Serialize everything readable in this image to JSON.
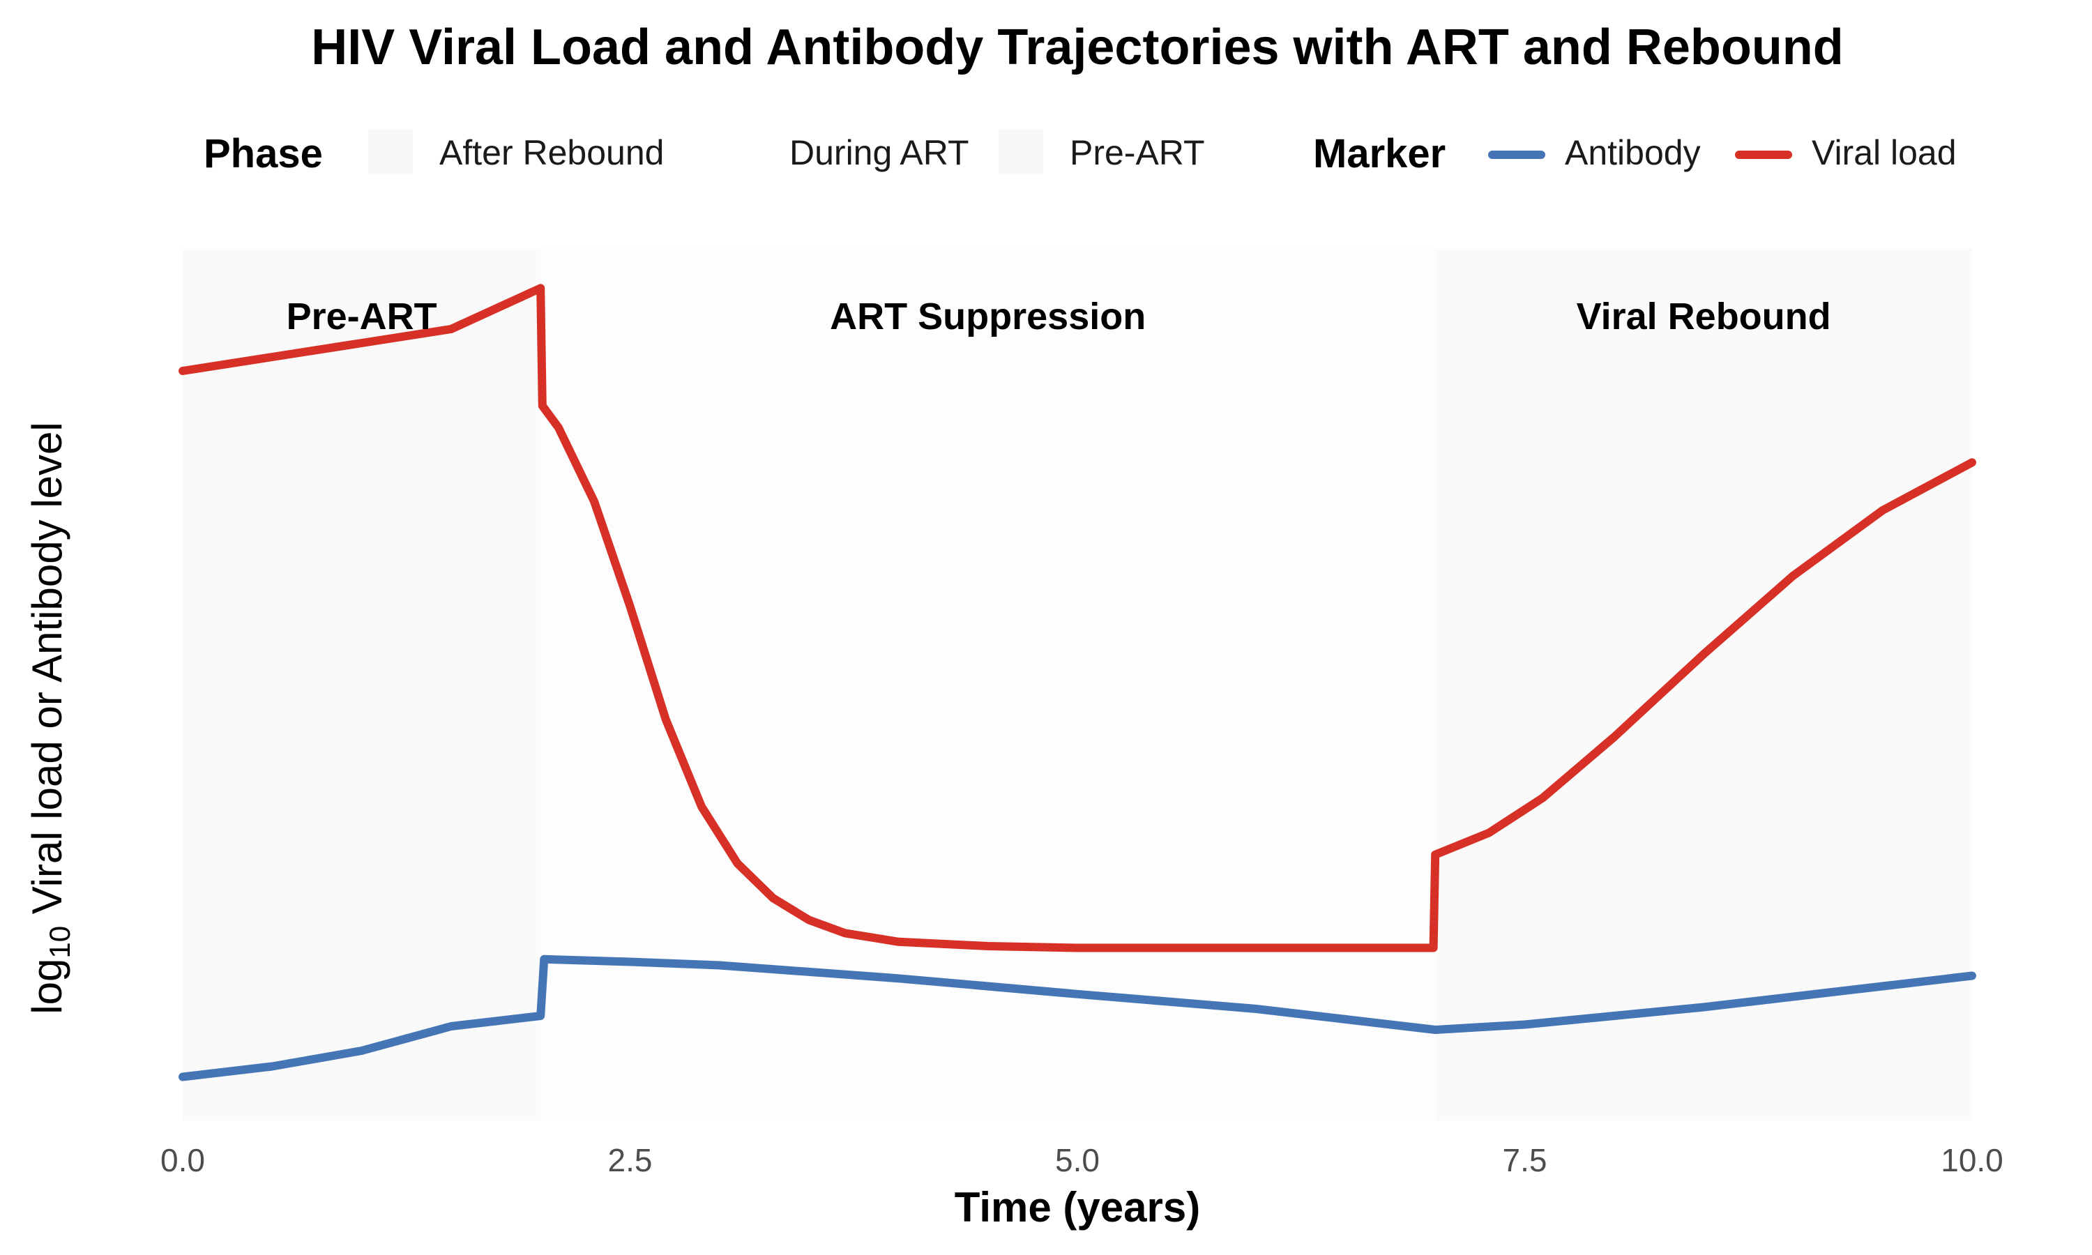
{
  "chart_data": {
    "type": "line",
    "title": "HIV Viral Load and Antibody Trajectories with ART and Rebound",
    "xlabel": "Time (years)",
    "ylabel_prefix": "log",
    "ylabel_sub": "10",
    "ylabel_rest": " Viral load or Antibody level",
    "xlim": [
      0,
      10
    ],
    "ylim": [
      0,
      1
    ],
    "x_ticks": [
      0,
      2.5,
      5,
      7.5,
      10
    ],
    "x_tick_labels": [
      "0.0",
      "2.5",
      "5.0",
      "7.5",
      "10.0"
    ],
    "grid": false,
    "legend": {
      "placement": "top",
      "phase_title": "Phase",
      "phase_entries": [
        {
          "label": "After Rebound",
          "color": "#f7f7f7"
        },
        {
          "label": "During ART",
          "color": "#ffffff"
        },
        {
          "label": "Pre-ART",
          "color": "#f7f7f7"
        }
      ],
      "marker_title": "Marker",
      "marker_entries": [
        {
          "label": "Antibody",
          "color": "#4575b4"
        },
        {
          "label": "Viral load",
          "color": "#d73027"
        }
      ]
    },
    "phases": [
      {
        "label": "Pre-ART",
        "x0": 0,
        "x1": 2,
        "color": "#fafafa",
        "label_x": 1.0
      },
      {
        "label": "ART Suppression",
        "x0": 2,
        "x1": 7,
        "color": "#fdfdfd",
        "label_x": 4.5
      },
      {
        "label": "Viral Rebound",
        "x0": 7,
        "x1": 10,
        "color": "#fafafa",
        "label_x": 8.5
      }
    ],
    "series": [
      {
        "name": "Viral load",
        "color": "#d73027",
        "x": [
          0,
          0.5,
          1.0,
          1.5,
          2.0,
          2.01,
          2.1,
          2.3,
          2.5,
          2.7,
          2.9,
          3.1,
          3.3,
          3.5,
          3.7,
          4.0,
          4.5,
          5.0,
          6.0,
          6.99,
          7.0,
          7.3,
          7.6,
          8.0,
          8.5,
          9.0,
          9.5,
          10.0
        ],
        "y": [
          0.86,
          0.876,
          0.892,
          0.908,
          0.955,
          0.82,
          0.795,
          0.71,
          0.59,
          0.46,
          0.36,
          0.295,
          0.255,
          0.23,
          0.215,
          0.205,
          0.2,
          0.198,
          0.198,
          0.198,
          0.305,
          0.33,
          0.37,
          0.44,
          0.535,
          0.625,
          0.7,
          0.755
        ]
      },
      {
        "name": "Antibody",
        "color": "#4575b4",
        "x": [
          0,
          0.5,
          1.0,
          1.5,
          2.0,
          2.02,
          2.5,
          3.0,
          4.0,
          5.0,
          6.0,
          7.0,
          7.5,
          8.0,
          8.5,
          9.0,
          9.5,
          10.0
        ],
        "y": [
          0.05,
          0.062,
          0.08,
          0.108,
          0.12,
          0.185,
          0.182,
          0.178,
          0.163,
          0.145,
          0.128,
          0.104,
          0.11,
          0.12,
          0.13,
          0.142,
          0.154,
          0.166
        ]
      }
    ]
  }
}
